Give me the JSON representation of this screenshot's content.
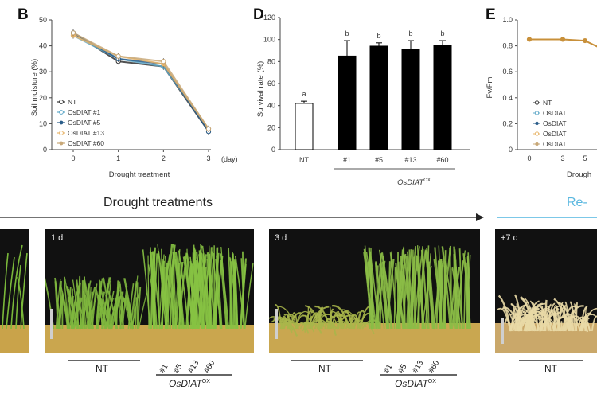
{
  "panels": {
    "b": {
      "letter": "B",
      "ylabel": "Soil moisture (%)",
      "xlabel": "Drought treatment",
      "x_unit": "(day)",
      "legend": [
        "NT",
        "OsDIAT",
        "#1",
        "#5",
        "#13",
        "#60"
      ]
    },
    "d": {
      "letter": "D",
      "ylabel": "Survival rate (%)",
      "xgroup": "OsDIAT"
    },
    "e": {
      "letter": "E",
      "ylabel": "Fv/Fm",
      "xlabel": "Drough",
      "legend": [
        "NT",
        "OsDIAT",
        "OsDIAT",
        "OsDIAT",
        "OsDIAT"
      ]
    }
  },
  "photos": {
    "arrow_label": "Drought treatments",
    "reirr_label": "Re-",
    "p1": {
      "label": "1 d"
    },
    "p2": {
      "label": "3 d"
    },
    "p3": {
      "label": "+7 d"
    },
    "nt": "NT",
    "ox": "OsDIAT",
    "sup": "OX",
    "lines": [
      "#1",
      "#5",
      "#13",
      "#60"
    ]
  },
  "chart_data": [
    {
      "type": "line",
      "title": "",
      "xlabel": "Drought treatment",
      "ylabel": "Soil moisture (%)",
      "x": [
        0,
        1,
        2,
        3
      ],
      "x_unit": "(day)",
      "ylim": [
        0,
        50
      ],
      "yticks": [
        0,
        10,
        20,
        30,
        40,
        50
      ],
      "series": [
        {
          "name": "NT",
          "values": [
            45,
            34,
            32,
            7
          ],
          "color": "#333333"
        },
        {
          "name": "OsDIAT #1",
          "values": [
            44,
            35,
            32,
            8
          ],
          "color": "#5fa8c8"
        },
        {
          "name": "OsDIAT #5",
          "values": [
            45,
            35,
            33,
            7
          ],
          "color": "#2a5d8a"
        },
        {
          "name": "OsDIAT #13",
          "values": [
            44,
            36,
            33,
            8
          ],
          "color": "#e8b56a"
        },
        {
          "name": "OsDIAT #60",
          "values": [
            45,
            36,
            34,
            8
          ],
          "color": "#c8a878"
        }
      ]
    },
    {
      "type": "bar",
      "title": "",
      "ylabel": "Survival rate (%)",
      "categories": [
        "NT",
        "#1",
        "#5",
        "#13",
        "#60"
      ],
      "values": [
        42,
        85,
        94,
        91,
        95
      ],
      "errors": [
        2,
        14,
        3,
        8,
        4
      ],
      "letters": [
        "a",
        "b",
        "b",
        "b",
        "b"
      ],
      "ylim": [
        0,
        120
      ],
      "yticks": [
        0,
        20,
        40,
        60,
        80,
        100,
        120
      ]
    },
    {
      "type": "line",
      "title": "",
      "ylabel": "Fv/Fm",
      "xlabel": "Drough",
      "x": [
        0,
        3,
        5
      ],
      "ylim": [
        0,
        1.0
      ],
      "yticks": [
        0,
        0.2,
        0.4,
        0.6,
        0.8,
        1.0
      ],
      "series": [
        {
          "name": "NT",
          "values": [
            0.85,
            0.85,
            0.84
          ],
          "color": "#c8903a"
        }
      ]
    }
  ]
}
